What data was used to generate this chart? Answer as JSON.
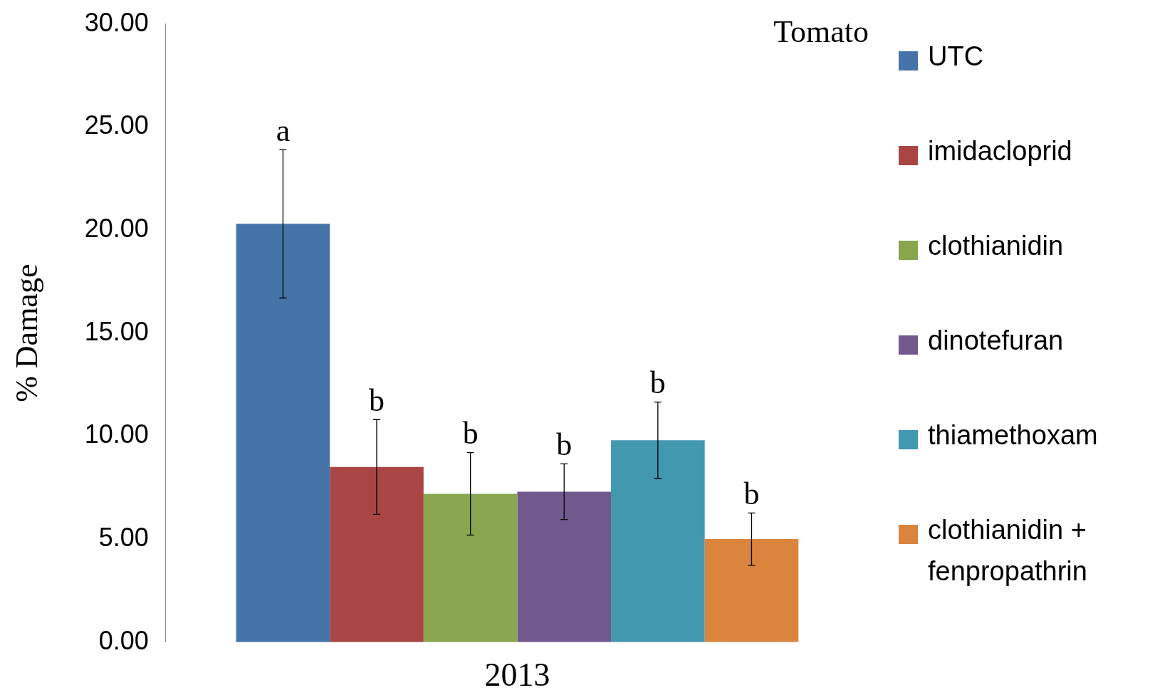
{
  "chart_data": {
    "type": "bar",
    "title": "Tomato",
    "ylabel": "% Damage",
    "xlabel": "2013",
    "categories": [
      null
    ],
    "series": [
      {
        "name": "UTC",
        "color": "#4673a8",
        "values": [
          20.3
        ],
        "errors": [
          3.6
        ]
      },
      {
        "name": "imidacloprid",
        "color": "#a94645",
        "values": [
          8.5
        ],
        "errors": [
          2.3
        ]
      },
      {
        "name": "clothianidin",
        "color": "#89a54e",
        "values": [
          7.2
        ],
        "errors": [
          2.0
        ]
      },
      {
        "name": "dinotefuran",
        "color": "#71598e",
        "values": [
          7.3
        ],
        "errors": [
          1.35
        ]
      },
      {
        "name": "thiamethoxam",
        "color": "#4198af",
        "values": [
          9.8
        ],
        "errors": [
          1.85
        ]
      },
      {
        "name": "clothianidin + fenpropathrin",
        "color": "#db843d",
        "values": [
          5.0
        ],
        "errors": [
          1.27
        ]
      }
    ],
    "ylim": [
      0,
      30
    ],
    "yticks": [
      {
        "value": 0,
        "label": "0.00"
      },
      {
        "value": 5,
        "label": "5.00"
      },
      {
        "value": 10,
        "label": "10.00"
      },
      {
        "value": 15,
        "label": "15.00"
      },
      {
        "value": 20,
        "label": "20.00"
      },
      {
        "value": 25,
        "label": "25.00"
      },
      {
        "value": 30,
        "label": "30.00"
      }
    ],
    "annotations": [
      {
        "text": "a",
        "y": 23.9
      },
      {
        "text": "b",
        "y": 10.8
      },
      {
        "text": "b",
        "y": 9.2
      },
      {
        "text": "b",
        "y": 8.65
      },
      {
        "text": "b",
        "y": 11.65
      },
      {
        "text": "b",
        "y": 6.27
      }
    ],
    "grid": false,
    "legend": "right"
  }
}
